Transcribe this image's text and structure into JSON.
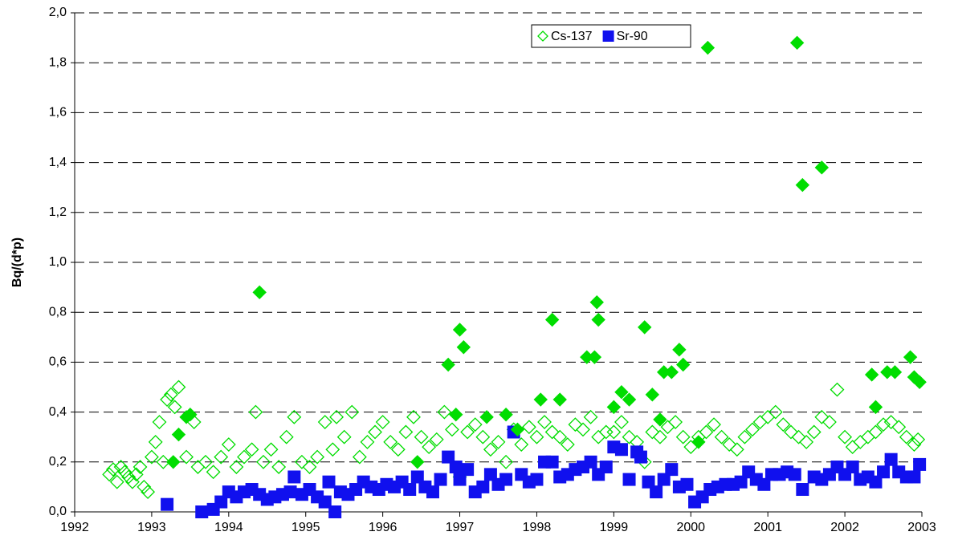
{
  "chart_data": {
    "type": "scatter",
    "ylabel": "Bq/(d*p)",
    "xlim": [
      1992,
      2003
    ],
    "xticks": [
      1992,
      1993,
      1994,
      1995,
      1996,
      1997,
      1998,
      1999,
      2000,
      2001,
      2002,
      2003
    ],
    "ylim": [
      0,
      2
    ],
    "yticks": [
      {
        "value": 0,
        "label": "0,0"
      },
      {
        "value": 0.2,
        "label": "0,2"
      },
      {
        "value": 0.4,
        "label": "0,4"
      },
      {
        "value": 0.6,
        "label": "0,6"
      },
      {
        "value": 0.8,
        "label": "0,8"
      },
      {
        "value": 1.0,
        "label": "1,0"
      },
      {
        "value": 1.2,
        "label": "1,2"
      },
      {
        "value": 1.4,
        "label": "1,4"
      },
      {
        "value": 1.6,
        "label": "1,6"
      },
      {
        "value": 1.8,
        "label": "1,8"
      },
      {
        "value": 2.0,
        "label": "2,0"
      }
    ],
    "grid": true,
    "legend": "top",
    "series": [
      {
        "name": "Cs-137",
        "color": "#00dd00",
        "marker": "diamond-open",
        "x": [
          1992.45,
          1992.5,
          1992.55,
          1992.6,
          1992.65,
          1992.7,
          1992.75,
          1992.8,
          1992.85,
          1992.9,
          1992.95,
          1993.0,
          1993.05,
          1993.1,
          1993.15,
          1993.2,
          1993.25,
          1993.3,
          1993.35,
          1993.45,
          1993.55,
          1993.6,
          1993.7,
          1993.8,
          1993.9,
          1994.0,
          1994.1,
          1994.2,
          1994.3,
          1994.35,
          1994.45,
          1994.55,
          1994.65,
          1994.75,
          1994.85,
          1994.95,
          1995.05,
          1995.15,
          1995.25,
          1995.35,
          1995.4,
          1995.5,
          1995.6,
          1995.7,
          1995.8,
          1995.9,
          1996.0,
          1996.1,
          1996.2,
          1996.3,
          1996.4,
          1996.5,
          1996.6,
          1996.7,
          1996.8,
          1996.9,
          1997.0,
          1997.1,
          1997.2,
          1997.3,
          1997.4,
          1997.5,
          1997.6,
          1997.7,
          1997.8,
          1997.9,
          1998.0,
          1998.1,
          1998.2,
          1998.3,
          1998.4,
          1998.5,
          1998.6,
          1998.7,
          1998.8,
          1998.9,
          1999.0,
          1999.1,
          1999.2,
          1999.3,
          1999.4,
          1999.5,
          1999.6,
          1999.7,
          1999.8,
          1999.9,
          2000.0,
          2000.1,
          2000.2,
          2000.3,
          2000.4,
          2000.5,
          2000.6,
          2000.7,
          2000.8,
          2000.9,
          2001.0,
          2001.1,
          2001.2,
          2001.3,
          2001.4,
          2001.5,
          2001.6,
          2001.7,
          2001.8,
          2001.9,
          2002.0,
          2002.1,
          2002.2,
          2002.3,
          2002.4,
          2002.5,
          2002.6,
          2002.7,
          2002.8,
          2002.9,
          2002.95
        ],
        "values": [
          0.15,
          0.17,
          0.12,
          0.18,
          0.16,
          0.14,
          0.12,
          0.15,
          0.18,
          0.1,
          0.08,
          0.22,
          0.28,
          0.36,
          0.2,
          0.45,
          0.47,
          0.42,
          0.5,
          0.22,
          0.36,
          0.18,
          0.2,
          0.16,
          0.22,
          0.27,
          0.18,
          0.22,
          0.25,
          0.4,
          0.2,
          0.25,
          0.18,
          0.3,
          0.38,
          0.2,
          0.18,
          0.22,
          0.36,
          0.25,
          0.38,
          0.3,
          0.4,
          0.22,
          0.28,
          0.32,
          0.36,
          0.28,
          0.25,
          0.32,
          0.38,
          0.3,
          0.26,
          0.29,
          0.4,
          0.33,
          0.14,
          0.32,
          0.35,
          0.3,
          0.25,
          0.28,
          0.2,
          0.33,
          0.27,
          0.34,
          0.3,
          0.36,
          0.32,
          0.3,
          0.27,
          0.35,
          0.33,
          0.38,
          0.3,
          0.32,
          0.32,
          0.36,
          0.3,
          0.28,
          0.2,
          0.32,
          0.3,
          0.34,
          0.36,
          0.3,
          0.26,
          0.3,
          0.32,
          0.35,
          0.3,
          0.27,
          0.25,
          0.3,
          0.33,
          0.36,
          0.38,
          0.4,
          0.35,
          0.32,
          0.3,
          0.28,
          0.32,
          0.38,
          0.36,
          0.49,
          0.3,
          0.26,
          0.28,
          0.3,
          0.32,
          0.35,
          0.36,
          0.34,
          0.3,
          0.27,
          0.29
        ]
      },
      {
        "name": "Sr-90",
        "color": "#1010ee",
        "marker": "square",
        "x": [
          1993.2,
          1993.65,
          1993.8,
          1993.9,
          1994.0,
          1994.1,
          1994.2,
          1994.3,
          1994.4,
          1994.5,
          1994.6,
          1994.7,
          1994.8,
          1994.85,
          1994.95,
          1995.05,
          1995.15,
          1995.25,
          1995.3,
          1995.38,
          1995.45,
          1995.55,
          1995.65,
          1995.75,
          1995.85,
          1995.95,
          1996.05,
          1996.15,
          1996.25,
          1996.35,
          1996.45,
          1996.55,
          1996.65,
          1996.75,
          1996.85,
          1996.95,
          1997.0,
          1997.1,
          1997.2,
          1997.3,
          1997.4,
          1997.5,
          1997.6,
          1997.7,
          1997.8,
          1997.9,
          1998.0,
          1998.1,
          1998.2,
          1998.3,
          1998.4,
          1998.5,
          1998.6,
          1998.7,
          1998.8,
          1998.9,
          1999.0,
          1999.1,
          1999.2,
          1999.3,
          1999.35,
          1999.45,
          1999.55,
          1999.65,
          1999.75,
          1999.85,
          1999.95,
          2000.05,
          2000.15,
          2000.25,
          2000.35,
          2000.45,
          2000.55,
          2000.65,
          2000.75,
          2000.85,
          2000.95,
          2001.05,
          2001.15,
          2001.25,
          2001.35,
          2001.45,
          2001.6,
          2001.7,
          2001.8,
          2001.9,
          2002.0,
          2002.1,
          2002.2,
          2002.3,
          2002.4,
          2002.5,
          2002.6,
          2002.7,
          2002.8,
          2002.9,
          2002.97
        ],
        "values": [
          0.03,
          0.0,
          0.01,
          0.04,
          0.08,
          0.06,
          0.08,
          0.09,
          0.07,
          0.05,
          0.06,
          0.07,
          0.08,
          0.14,
          0.07,
          0.09,
          0.06,
          0.04,
          0.12,
          0.0,
          0.08,
          0.07,
          0.09,
          0.12,
          0.1,
          0.09,
          0.11,
          0.1,
          0.12,
          0.09,
          0.14,
          0.1,
          0.08,
          0.13,
          0.22,
          0.18,
          0.13,
          0.17,
          0.08,
          0.1,
          0.15,
          0.11,
          0.13,
          0.32,
          0.15,
          0.12,
          0.13,
          0.2,
          0.2,
          0.14,
          0.15,
          0.17,
          0.18,
          0.2,
          0.15,
          0.18,
          0.26,
          0.25,
          0.13,
          0.24,
          0.22,
          0.12,
          0.08,
          0.13,
          0.17,
          0.1,
          0.11,
          0.04,
          0.06,
          0.09,
          0.1,
          0.11,
          0.11,
          0.12,
          0.16,
          0.13,
          0.11,
          0.15,
          0.15,
          0.16,
          0.15,
          0.09,
          0.14,
          0.13,
          0.15,
          0.18,
          0.15,
          0.18,
          0.13,
          0.14,
          0.12,
          0.16,
          0.21,
          0.16,
          0.14,
          0.14,
          0.19
        ]
      },
      {
        "color": "#00dd00",
        "marker": "diamond",
        "x": [
          1993.28,
          1993.35,
          1993.45,
          1993.5,
          1994.4,
          1996.45,
          1996.85,
          1996.95,
          1997.0,
          1997.05,
          1997.35,
          1997.6,
          1997.75,
          1998.05,
          1998.2,
          1998.3,
          1998.65,
          1998.75,
          1998.78,
          1998.8,
          1999.0,
          1999.1,
          1999.2,
          1999.4,
          1999.5,
          1999.6,
          1999.65,
          1999.75,
          1999.85,
          1999.9,
          2000.1,
          2000.22,
          2001.38,
          2001.45,
          2001.7,
          2002.35,
          2002.4,
          2002.55,
          2002.65,
          2002.85,
          2002.9,
          2002.97
        ],
        "values": [
          0.2,
          0.31,
          0.38,
          0.39,
          0.88,
          0.2,
          0.59,
          0.39,
          0.73,
          0.66,
          0.38,
          0.39,
          0.33,
          0.45,
          0.77,
          0.45,
          0.62,
          0.62,
          0.84,
          0.77,
          0.42,
          0.48,
          0.45,
          0.74,
          0.47,
          0.37,
          0.56,
          0.56,
          0.65,
          0.59,
          0.28,
          1.86,
          1.88,
          1.31,
          1.38,
          0.55,
          0.42,
          0.56,
          0.56,
          0.62,
          0.54,
          0.52
        ]
      }
    ]
  }
}
